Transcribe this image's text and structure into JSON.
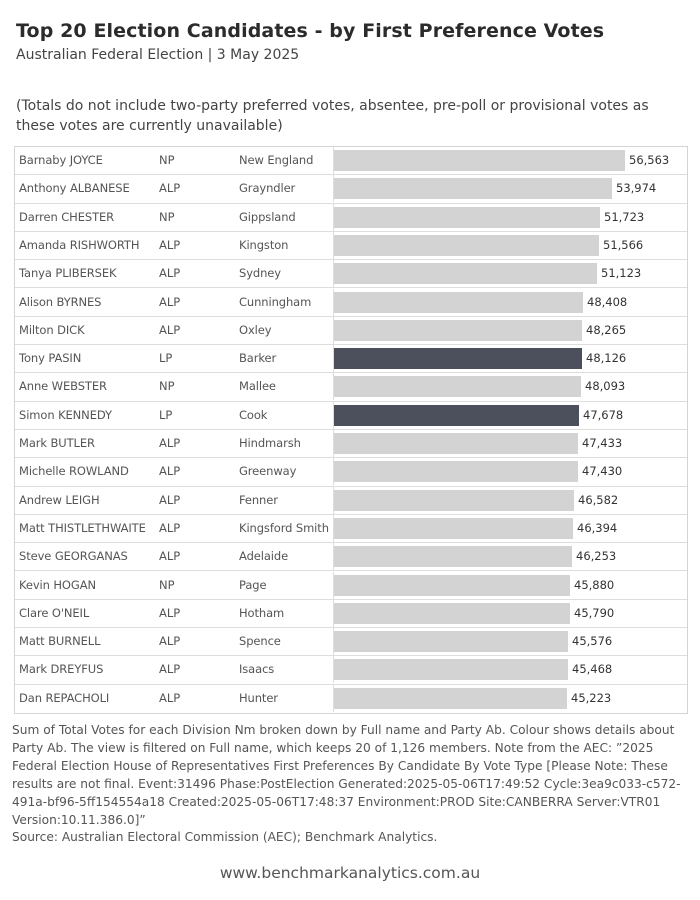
{
  "header": {
    "title": "Top 20 Election Candidates - by First Preference Votes",
    "subtitle": "Australian Federal Election | 3 May 2025",
    "note": "(Totals do not include two-party preferred votes, absentee, pre-poll or provisional votes as these votes are currently unavailable)"
  },
  "colors": {
    "default_bar": "#d3d3d3",
    "LP": "#4b505c"
  },
  "chart_data": {
    "type": "bar",
    "orientation": "horizontal",
    "columns": [
      "Full name",
      "Party Ab",
      "Division Nm"
    ],
    "rows": [
      {
        "name": "Barnaby JOYCE",
        "party": "NP",
        "division": "New England",
        "value": 56563,
        "label": "56,563"
      },
      {
        "name": "Anthony ALBANESE",
        "party": "ALP",
        "division": "Grayndler",
        "value": 53974,
        "label": "53,974"
      },
      {
        "name": "Darren CHESTER",
        "party": "NP",
        "division": "Gippsland",
        "value": 51723,
        "label": "51,723"
      },
      {
        "name": "Amanda RISHWORTH",
        "party": "ALP",
        "division": "Kingston",
        "value": 51566,
        "label": "51,566"
      },
      {
        "name": "Tanya PLIBERSEK",
        "party": "ALP",
        "division": "Sydney",
        "value": 51123,
        "label": "51,123"
      },
      {
        "name": "Alison BYRNES",
        "party": "ALP",
        "division": "Cunningham",
        "value": 48408,
        "label": "48,408"
      },
      {
        "name": "Milton DICK",
        "party": "ALP",
        "division": "Oxley",
        "value": 48265,
        "label": "48,265"
      },
      {
        "name": "Tony PASIN",
        "party": "LP",
        "division": "Barker",
        "value": 48126,
        "label": "48,126"
      },
      {
        "name": "Anne WEBSTER",
        "party": "NP",
        "division": "Mallee",
        "value": 48093,
        "label": "48,093"
      },
      {
        "name": "Simon KENNEDY",
        "party": "LP",
        "division": "Cook",
        "value": 47678,
        "label": "47,678"
      },
      {
        "name": "Mark BUTLER",
        "party": "ALP",
        "division": "Hindmarsh",
        "value": 47433,
        "label": "47,433"
      },
      {
        "name": "Michelle ROWLAND",
        "party": "ALP",
        "division": "Greenway",
        "value": 47430,
        "label": "47,430"
      },
      {
        "name": "Andrew LEIGH",
        "party": "ALP",
        "division": "Fenner",
        "value": 46582,
        "label": "46,582"
      },
      {
        "name": "Matt THISTLETHWAITE",
        "party": "ALP",
        "division": "Kingsford Smith",
        "value": 46394,
        "label": "46,394"
      },
      {
        "name": "Steve GEORGANAS",
        "party": "ALP",
        "division": "Adelaide",
        "value": 46253,
        "label": "46,253"
      },
      {
        "name": "Kevin HOGAN",
        "party": "NP",
        "division": "Page",
        "value": 45880,
        "label": "45,880"
      },
      {
        "name": "Clare O'NEIL",
        "party": "ALP",
        "division": "Hotham",
        "value": 45790,
        "label": "45,790"
      },
      {
        "name": "Matt BURNELL",
        "party": "ALP",
        "division": "Spence",
        "value": 45576,
        "label": "45,576"
      },
      {
        "name": "Mark DREYFUS",
        "party": "ALP",
        "division": "Isaacs",
        "value": 45468,
        "label": "45,468"
      },
      {
        "name": "Dan REPACHOLI",
        "party": "ALP",
        "division": "Hunter",
        "value": 45223,
        "label": "45,223"
      }
    ],
    "xlim": [
      0,
      56563
    ]
  },
  "footer": {
    "description": "Sum of Total Votes for each Division Nm broken down by Full name and Party Ab.  Colour shows details about Party Ab. The view is filtered on Full name, which keeps 20 of 1,126 members. Note from the AEC: ”2025 Federal Election House of Representatives First Preferences By Candidate By Vote Type [Please Note: These results are not final. Event:31496 Phase:PostElection Generated:2025-05-06T17:49:52 Cycle:3ea9c033-c572-491a-bf96-5ff154554a18 Created:2025-05-06T17:48:37 Environment:PROD Site:CANBERRA Server:VTR01 Version:10.11.386.0]”",
    "source": "Source: Australian Electoral Commission (AEC); Benchmark Analytics.",
    "website": "www.benchmarkanalytics.com.au"
  }
}
